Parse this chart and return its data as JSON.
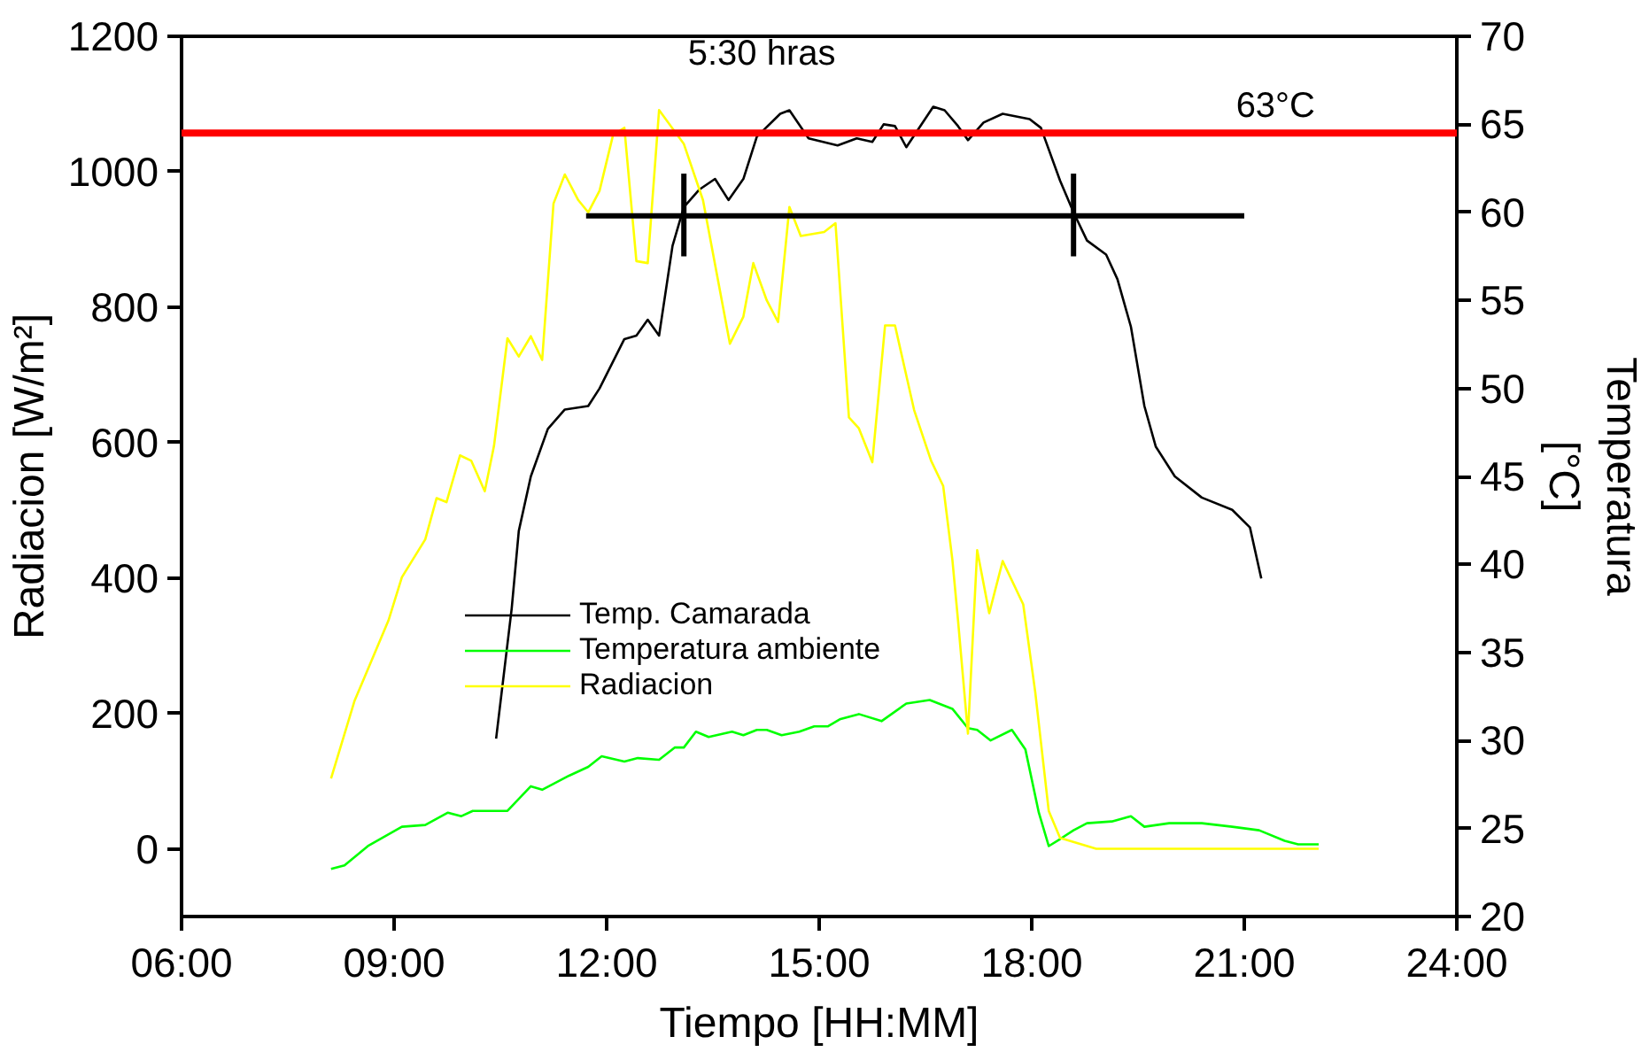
{
  "chart_data": {
    "type": "line",
    "xlabel": "Tiempo [HH:MM]",
    "ylabel": "Radiacion [W/m²]",
    "y2label": "Temperatura [°C]",
    "xlim": [
      6,
      24
    ],
    "xticks": [
      {
        "value": 6,
        "label": "06:00"
      },
      {
        "value": 9,
        "label": "09:00"
      },
      {
        "value": 12,
        "label": "12:00"
      },
      {
        "value": 15,
        "label": "15:00"
      },
      {
        "value": 18,
        "label": "18:00"
      },
      {
        "value": 21,
        "label": "21:00"
      },
      {
        "value": 24,
        "label": "24:00"
      }
    ],
    "ylim": [
      -100,
      1200
    ],
    "yticks": [
      0,
      200,
      400,
      600,
      800,
      1000,
      1200
    ],
    "y2lim": [
      20,
      70
    ],
    "y2ticks": [
      20,
      25,
      30,
      35,
      40,
      45,
      50,
      55,
      60,
      65,
      70
    ],
    "grid": false,
    "legend": "center left",
    "series": [
      {
        "name": "Temp. Camarada",
        "color": "#000000",
        "axis": "y2",
        "x": [
          10.44,
          10.66,
          10.76,
          10.93,
          11.17,
          11.41,
          11.74,
          11.9,
          12.25,
          12.42,
          12.58,
          12.74,
          12.93,
          13.09,
          13.31,
          13.53,
          13.72,
          13.93,
          14.12,
          14.45,
          14.58,
          14.85,
          15.26,
          15.53,
          15.75,
          15.91,
          16.07,
          16.23,
          16.61,
          16.77,
          16.96,
          17.1,
          17.32,
          17.59,
          17.97,
          18.13,
          18.4,
          18.59,
          18.78,
          19.05,
          19.21,
          19.4,
          19.59,
          19.75,
          20.02,
          20.4,
          20.83,
          21.08,
          21.24
        ],
        "values": [
          30.1,
          37.5,
          41.9,
          45.0,
          47.7,
          48.8,
          49.0,
          50.0,
          52.8,
          53.0,
          53.9,
          53.0,
          58.1,
          60.3,
          61.3,
          61.9,
          60.7,
          61.9,
          64.3,
          65.6,
          65.8,
          64.2,
          63.8,
          64.2,
          64.0,
          65.0,
          64.9,
          63.7,
          66.0,
          65.8,
          64.9,
          64.1,
          65.1,
          65.6,
          65.3,
          64.8,
          61.8,
          60.0,
          58.4,
          57.6,
          56.2,
          53.5,
          49.0,
          46.7,
          45.0,
          43.8,
          43.1,
          42.1,
          39.2
        ]
      },
      {
        "name": "Temperatura ambiente",
        "color": "#00ff00",
        "axis": "y2",
        "x": [
          8.11,
          8.3,
          8.63,
          9.11,
          9.44,
          9.76,
          9.95,
          10.11,
          10.28,
          10.6,
          10.93,
          11.09,
          11.47,
          11.74,
          11.93,
          12.25,
          12.44,
          12.74,
          12.96,
          13.09,
          13.26,
          13.44,
          13.77,
          13.93,
          14.12,
          14.26,
          14.47,
          14.72,
          14.93,
          15.12,
          15.29,
          15.56,
          15.88,
          16.23,
          16.56,
          16.88,
          17.1,
          17.23,
          17.42,
          17.72,
          17.91,
          18.1,
          18.24,
          18.4,
          18.59,
          18.78,
          19.13,
          19.4,
          19.59,
          19.94,
          20.4,
          20.83,
          21.21,
          21.57,
          21.76,
          22.05
        ],
        "values": [
          22.7,
          22.9,
          24.0,
          25.1,
          25.2,
          25.9,
          25.7,
          26.0,
          26.0,
          26.0,
          27.4,
          27.2,
          28.0,
          28.5,
          29.1,
          28.8,
          29.0,
          28.9,
          29.6,
          29.6,
          30.5,
          30.2,
          30.5,
          30.3,
          30.6,
          30.6,
          30.3,
          30.5,
          30.8,
          30.8,
          31.2,
          31.5,
          31.1,
          32.1,
          32.3,
          31.8,
          30.7,
          30.6,
          30.0,
          30.6,
          29.5,
          25.9,
          24.0,
          24.4,
          24.9,
          25.3,
          25.4,
          25.7,
          25.1,
          25.3,
          25.3,
          25.1,
          24.9,
          24.3,
          24.1,
          24.1
        ]
      },
      {
        "name": "Radiacion",
        "color": "#ffff00",
        "x": [
          8.11,
          8.44,
          8.92,
          9.11,
          9.44,
          9.6,
          9.74,
          9.93,
          10.09,
          10.28,
          10.41,
          10.6,
          10.76,
          10.93,
          11.09,
          11.25,
          11.41,
          11.6,
          11.74,
          11.9,
          12.09,
          12.25,
          12.42,
          12.58,
          12.74,
          13.09,
          13.36,
          13.74,
          13.93,
          14.07,
          14.26,
          14.42,
          14.58,
          14.74,
          15.07,
          15.23,
          15.42,
          15.56,
          15.75,
          15.93,
          16.07,
          16.34,
          16.58,
          16.75,
          16.88,
          16.96,
          17.1,
          17.23,
          17.4,
          17.59,
          17.88,
          18.05,
          18.24,
          18.4,
          18.91,
          22.05
        ],
        "values": [
          104,
          218,
          337,
          401,
          457,
          518,
          512,
          581,
          573,
          528,
          595,
          754,
          727,
          757,
          722,
          953,
          996,
          958,
          940,
          972,
          1054,
          1065,
          868,
          865,
          1091,
          1041,
          958,
          746,
          786,
          865,
          810,
          778,
          948,
          905,
          911,
          924,
          637,
          621,
          571,
          773,
          773,
          648,
          573,
          536,
          427,
          337,
          170,
          441,
          348,
          425,
          361,
          231,
          56,
          16,
          0,
          0
        ]
      },
      {
        "color": "#000000",
        "axis": "y2",
        "x": [
          11.71,
          21.0
        ],
        "values": [
          59.8,
          59.8
        ]
      },
      {
        "color": "#000000",
        "axis": "y2",
        "x": [
          13.09,
          13.09
        ],
        "values": [
          62.2,
          57.5
        ]
      },
      {
        "color": "#000000",
        "axis": "y2",
        "x": [
          18.59,
          18.59
        ],
        "values": [
          62.2,
          57.5
        ]
      }
    ],
    "ref_lines": [
      {
        "axis": "y2",
        "value": 64.5,
        "label": "63°C",
        "color": "#ff0000"
      }
    ],
    "annotations": [
      "5:30 hras"
    ]
  }
}
